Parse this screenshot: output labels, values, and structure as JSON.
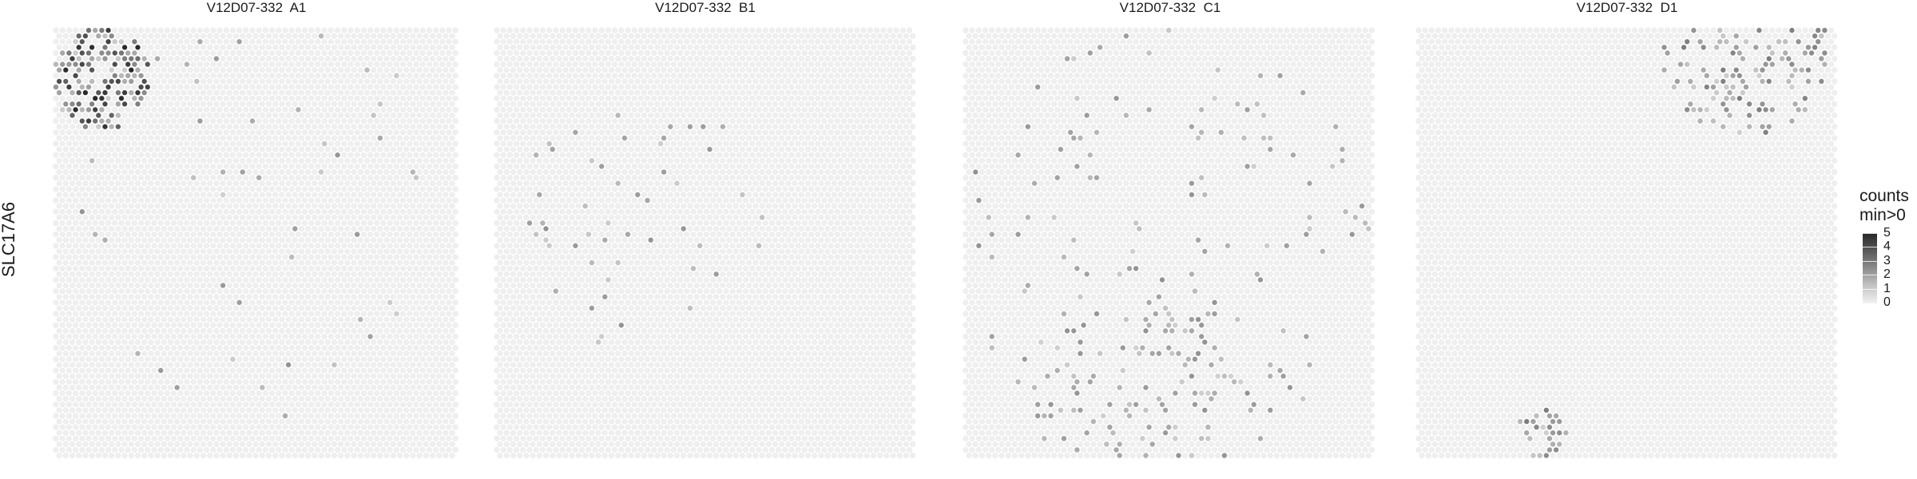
{
  "row_label": "SLC17A6",
  "legend": {
    "title_line1": "counts",
    "title_line2": "min>0",
    "ticks": [
      "5",
      "4",
      "3",
      "2",
      "1",
      "0"
    ]
  },
  "chart_data": {
    "type": "spatial-heatmap",
    "gene": "SLC17A6",
    "color_scale": {
      "min": 0,
      "max": 5,
      "low": "#f2f2f2",
      "high": "#1f1f1f"
    },
    "panels": [
      {
        "title": "V12D07-332  A1",
        "max_count": 5
      },
      {
        "title": "V12D07-332  B1",
        "max_count": 3
      },
      {
        "title": "V12D07-332  C1",
        "max_count": 3
      },
      {
        "title": "V12D07-332  D1",
        "max_count": 3
      }
    ]
  }
}
